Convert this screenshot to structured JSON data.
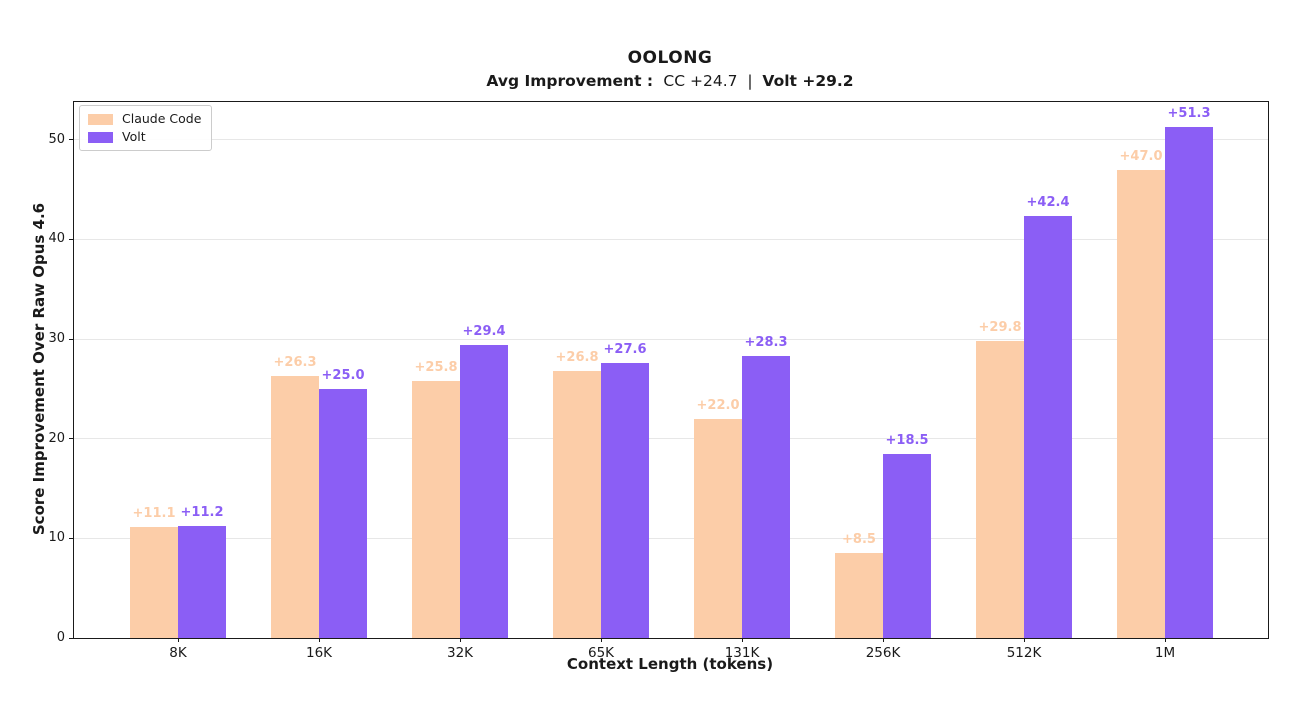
{
  "chart_data": {
    "type": "bar",
    "title": "OOLONG",
    "subtitle_text": "Avg Improvement :  CC +24.7  |  Volt +29.2",
    "subtitle_parts": [
      {
        "text": "Avg Improvement : ",
        "bold": true
      },
      {
        "text": " CC +24.7  |  ",
        "bold": false
      },
      {
        "text": "Volt +29.2",
        "bold": true
      }
    ],
    "xlabel": "Context Length (tokens)",
    "ylabel": "Score Improvement Over Raw Opus 4.6",
    "categories": [
      "8K",
      "16K",
      "32K",
      "65K",
      "131K",
      "256K",
      "512K",
      "1M"
    ],
    "series": [
      {
        "name": "Claude Code",
        "color": "#FCCDA8",
        "values": [
          11.1,
          26.3,
          25.8,
          26.8,
          22.0,
          8.5,
          29.8,
          47.0
        ],
        "labels": [
          "+11.1",
          "+26.3",
          "+25.8",
          "+26.8",
          "+22.0",
          "+8.5",
          "+29.8",
          "+47.0"
        ]
      },
      {
        "name": "Volt",
        "color": "#8B5EF5",
        "values": [
          11.2,
          25.0,
          29.4,
          27.6,
          28.3,
          18.5,
          42.4,
          51.3
        ],
        "labels": [
          "+11.2",
          "+25.0",
          "+29.4",
          "+27.6",
          "+28.3",
          "+18.5",
          "+42.4",
          "+51.3"
        ]
      }
    ],
    "ytick_labels": [
      "0",
      "10",
      "20",
      "30",
      "40",
      "50"
    ],
    "yticks": [
      0,
      10,
      20,
      30,
      40,
      50
    ],
    "ylim": [
      0,
      53.8
    ],
    "grid": "horizontal",
    "grid_color": "#e7e7e7",
    "spine_color": "#1a1a1a",
    "legend_position": "upper-left"
  }
}
